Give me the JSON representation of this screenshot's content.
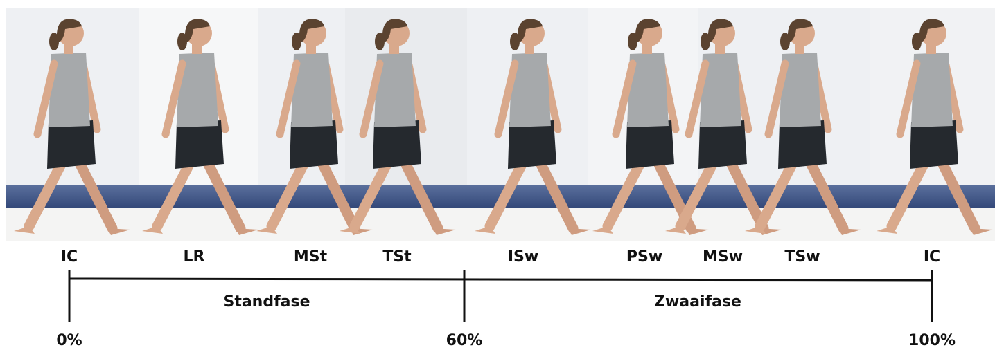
{
  "phases": [
    "IC",
    "LR",
    "MSt",
    "TSt",
    "ISw",
    "PSw",
    "MSw",
    "TSw",
    "IC"
  ],
  "stages": [
    "Standfase",
    "Zwaaifase"
  ],
  "percentages": [
    "0%",
    "60%",
    "100%"
  ]
}
